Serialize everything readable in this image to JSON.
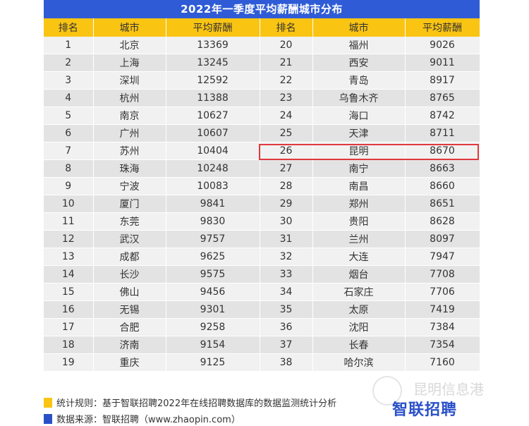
{
  "title": "2022年一季度平均薪酬城市分布",
  "headers": [
    "排名",
    "城市",
    "平均薪酬",
    "排名",
    "城市",
    "平均薪酬"
  ],
  "rows": [
    [
      "1",
      "北京",
      "13369",
      "20",
      "福州",
      "9026"
    ],
    [
      "2",
      "上海",
      "13245",
      "21",
      "西安",
      "9011"
    ],
    [
      "3",
      "深圳",
      "12592",
      "22",
      "青岛",
      "8917"
    ],
    [
      "4",
      "杭州",
      "11388",
      "23",
      "乌鲁木齐",
      "8765"
    ],
    [
      "5",
      "南京",
      "10627",
      "24",
      "海口",
      "8742"
    ],
    [
      "6",
      "广州",
      "10607",
      "25",
      "天津",
      "8711"
    ],
    [
      "7",
      "苏州",
      "10404",
      "26",
      "昆明",
      "8670"
    ],
    [
      "8",
      "珠海",
      "10248",
      "27",
      "南宁",
      "8663"
    ],
    [
      "9",
      "宁波",
      "10083",
      "28",
      "南昌",
      "8660"
    ],
    [
      "10",
      "厦门",
      "9841",
      "29",
      "郑州",
      "8651"
    ],
    [
      "11",
      "东莞",
      "9830",
      "30",
      "贵阳",
      "8628"
    ],
    [
      "12",
      "武汉",
      "9757",
      "31",
      "兰州",
      "8097"
    ],
    [
      "13",
      "成都",
      "9625",
      "32",
      "大连",
      "7947"
    ],
    [
      "14",
      "长沙",
      "9575",
      "33",
      "烟台",
      "7708"
    ],
    [
      "15",
      "佛山",
      "9456",
      "34",
      "石家庄",
      "7706"
    ],
    [
      "16",
      "无锡",
      "9301",
      "35",
      "太原",
      "7419"
    ],
    [
      "17",
      "合肥",
      "9258",
      "36",
      "沈阳",
      "7384"
    ],
    [
      "18",
      "济南",
      "9154",
      "37",
      "长春",
      "7354"
    ],
    [
      "19",
      "重庆",
      "9125",
      "38",
      "哈尔滨",
      "7160"
    ]
  ],
  "highlighted_row": "26",
  "footer": {
    "rule": "统计规则：基于智联招聘2022年在线招聘数据库的数据监测统计分析",
    "source": "数据来源：智联招聘（www.zhaopin.com）"
  },
  "logo": "智联招聘",
  "watermark": "昆明信息港",
  "colors": {
    "title_bg": "#2f5cd6",
    "header_bg": "#fac413",
    "highlight": "#e0393e",
    "row_light": "#f1f1f1",
    "row_dark": "#e3e3e3",
    "rule_marker": "#fac413",
    "source_marker": "#2a50c8"
  }
}
